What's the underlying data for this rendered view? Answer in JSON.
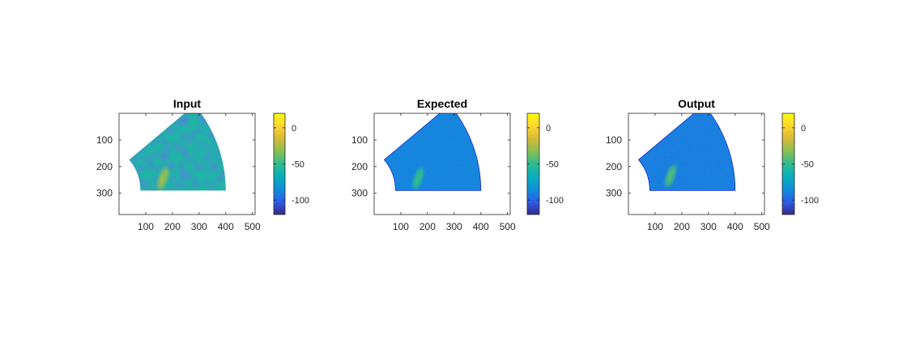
{
  "colors": {
    "axes_frame": "#262626",
    "background": "#ffffff",
    "parula_colormap": [
      "#352a87",
      "#2c5de8",
      "#0f8edb",
      "#09aebc",
      "#2dbb8f",
      "#8abf54",
      "#d5b939",
      "#fcd62d",
      "#f9fb0e"
    ]
  },
  "chart_data": [
    {
      "type": "heatmap",
      "title": "Input",
      "xticks": [
        100,
        200,
        300,
        400,
        500
      ],
      "yticks": [
        100,
        200,
        300
      ],
      "xlim": [
        0,
        510
      ],
      "ylim": [
        380,
        0
      ],
      "colorbar": {
        "ticks": [
          0,
          -50,
          -100
        ],
        "clim": [
          -120,
          20
        ],
        "colormap": "parula"
      },
      "sector": {
        "apex": [
          -100,
          290
        ],
        "r_inner": 180,
        "r_outer": 500,
        "angle_deg": [
          0,
          40
        ]
      },
      "background_level": -58,
      "blob": {
        "center": [
          165,
          245
        ],
        "level": -30
      }
    },
    {
      "type": "heatmap",
      "title": "Expected",
      "xticks": [
        100,
        200,
        300,
        400,
        500
      ],
      "yticks": [
        100,
        200,
        300
      ],
      "xlim": [
        0,
        510
      ],
      "ylim": [
        380,
        0
      ],
      "colorbar": {
        "ticks": [
          0,
          -50,
          -100
        ],
        "clim": [
          -120,
          20
        ],
        "colormap": "parula"
      },
      "sector": {
        "apex": [
          -100,
          290
        ],
        "r_inner": 180,
        "r_outer": 500,
        "angle_deg": [
          0,
          40
        ]
      },
      "background_level": -88,
      "blob": {
        "center": [
          165,
          245
        ],
        "level": -50
      }
    },
    {
      "type": "heatmap",
      "title": "Output",
      "xticks": [
        100,
        200,
        300,
        400,
        500
      ],
      "yticks": [
        100,
        200,
        300
      ],
      "xlim": [
        0,
        510
      ],
      "ylim": [
        380,
        0
      ],
      "colorbar": {
        "ticks": [
          0,
          -50,
          -100
        ],
        "clim": [
          -120,
          20
        ],
        "colormap": "parula"
      },
      "sector": {
        "apex": [
          -100,
          290
        ],
        "r_inner": 180,
        "r_outer": 500,
        "angle_deg": [
          0,
          40
        ]
      },
      "background_level": -90,
      "blob": {
        "center": [
          158,
          235
        ],
        "level": -45
      }
    }
  ]
}
